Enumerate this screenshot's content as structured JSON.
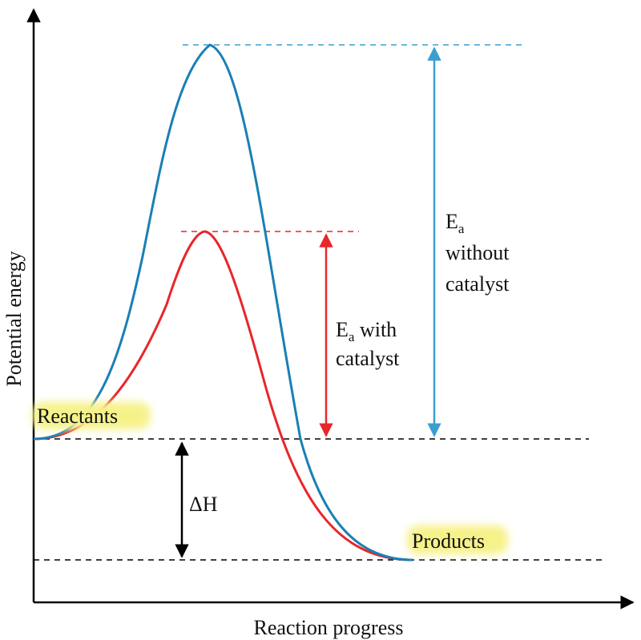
{
  "axes": {
    "y_label": "Potential energy",
    "x_label": "Reaction progress"
  },
  "labels": {
    "reactants": "Reactants",
    "products": "Products",
    "delta_h": "ΔH",
    "ea_main": "E",
    "ea_sub": "a",
    "ea_catalyst_suffix": " with",
    "ea_catalyst_line2": "catalyst",
    "ea_no_catalyst_line2": "without",
    "ea_no_catalyst_line3": "catalyst"
  },
  "colors": {
    "without_catalyst": "#1a7fb5",
    "with_catalyst": "#e8262a",
    "axis": "#000000",
    "highlight": "#f6f28a"
  }
}
